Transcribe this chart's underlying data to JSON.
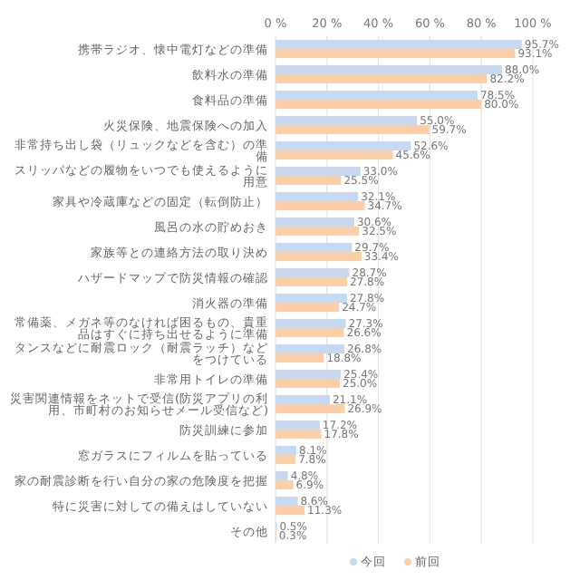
{
  "chart_data": {
    "type": "bar",
    "orientation": "horizontal",
    "categories": [
      "携帯ラジオ、懐中電灯などの準備",
      "飲料水の準備",
      "食料品の準備",
      "火災保険、地震保険への加入",
      "非常持ち出し袋（リュックなどを含む）の準備",
      "スリッパなどの履物をいつでも使えるように用意",
      "家具や冷蔵庫などの固定（転倒防止）",
      "風呂の水の貯めおき",
      "家族等との連絡方法の取り決め",
      "ハザードマップで防災情報の確認",
      "消火器の準備",
      "常備薬、メガネ等のなければ困るもの、貴重品はすぐに持ち出せるように準備",
      "タンスなどに耐震ロック（耐震ラッチ）などをつけている",
      "非常用トイレの準備",
      "災害関連情報をネットで受信(防災アプリの利用、市町村のお知らせメール受信など)",
      "防災訓練に参加",
      "窓ガラスにフィルムを貼っている",
      "家の耐震診断を行い自分の家の危険度を把握",
      "特に災害に対しての備えはしていない",
      "その他"
    ],
    "series": [
      {
        "name": "今回",
        "color": "#c6d9f0",
        "values": [
          95.7,
          88.0,
          78.5,
          55.0,
          52.6,
          33.0,
          32.1,
          30.6,
          29.7,
          28.7,
          27.8,
          27.3,
          26.8,
          25.4,
          21.1,
          17.2,
          8.1,
          4.8,
          8.6,
          0.5
        ],
        "value_labels": [
          "95.7%",
          "88.0%",
          "78.5%",
          "55.0%",
          "52.6%",
          "33.0%",
          "32.1%",
          "30.6%",
          "29.7%",
          "28.7%",
          "27.8%",
          "27.3%",
          "26.8%",
          "25.4%",
          "21.1%",
          "17.2%",
          "8.1%",
          "4.8%",
          "8.6%",
          "0.5%"
        ]
      },
      {
        "name": "前回",
        "color": "#fbd0a8",
        "values": [
          93.1,
          82.2,
          80.0,
          59.7,
          45.6,
          25.5,
          34.7,
          32.5,
          33.4,
          27.8,
          24.7,
          26.6,
          18.8,
          25.0,
          26.9,
          17.8,
          7.8,
          6.9,
          11.3,
          0.3
        ],
        "value_labels": [
          "93.1%",
          "82.2%",
          "80.0%",
          "59.7%",
          "45.6%",
          "25.5%",
          "34.7%",
          "32.5%",
          "33.4%",
          "27.8%",
          "24.7%",
          "26.6%",
          "18.8%",
          "25.0%",
          "26.9%",
          "17.8%",
          "7.8%",
          "6.9%",
          "11.3%",
          "0.3%"
        ]
      }
    ],
    "xlim": [
      0,
      100
    ],
    "xticks": [
      {
        "value": 0,
        "label": "0 %"
      },
      {
        "value": 20,
        "label": "20 %"
      },
      {
        "value": 40,
        "label": "40 %"
      },
      {
        "value": 60,
        "label": "60 %"
      },
      {
        "value": 80,
        "label": "80 %"
      },
      {
        "value": 100,
        "label": "100 %"
      }
    ],
    "grid": "x",
    "legend": "bottom"
  }
}
